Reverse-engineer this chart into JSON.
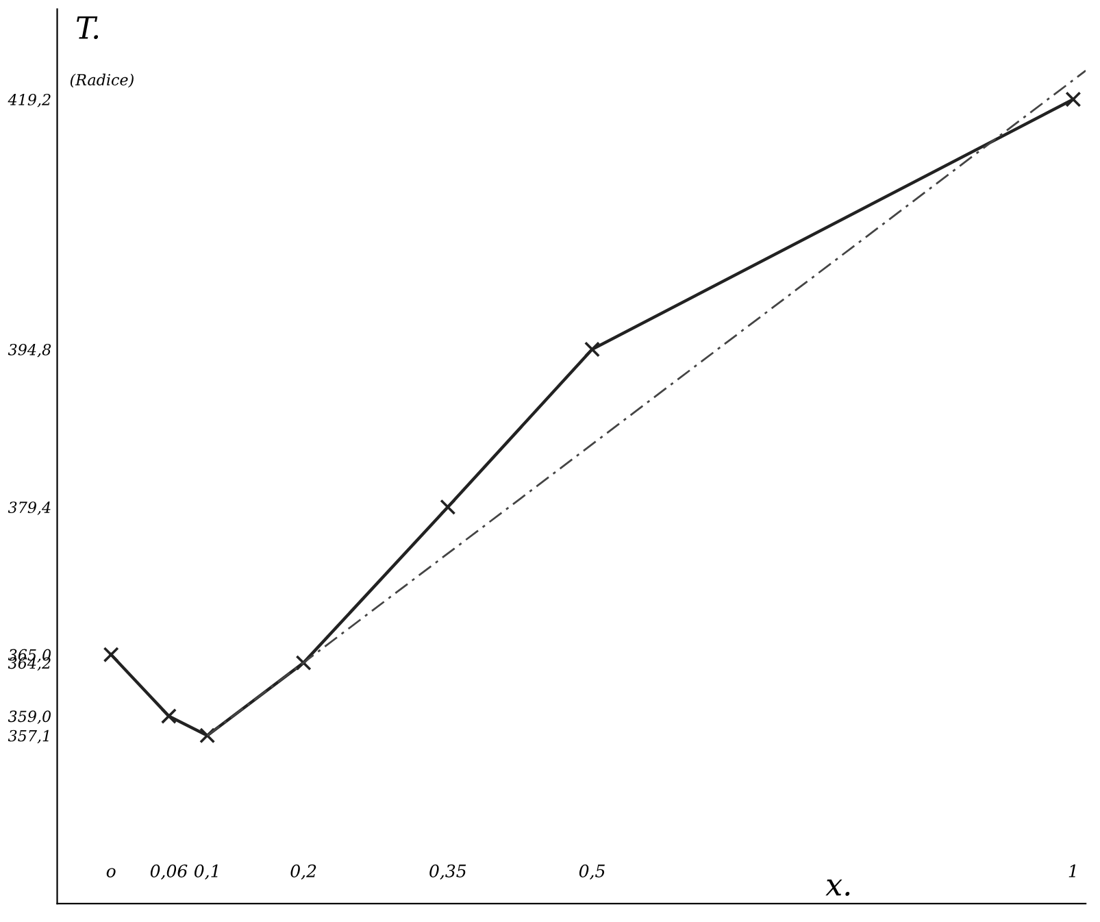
{
  "chart_data": {
    "type": "line",
    "xlabel": "x.",
    "ylabel": "T.",
    "annotations": [
      "(Radice)"
    ],
    "x": [
      0,
      0.06,
      0.1,
      0.2,
      0.35,
      0.5,
      1
    ],
    "series": [
      {
        "color": "#222222",
        "values": [
          365.0,
          359.0,
          357.1,
          364.2,
          379.4,
          394.8,
          419.2
        ],
        "marker": "cross",
        "line_style": "solid"
      },
      {
        "type": "line",
        "color": "#444444",
        "x": [
          0.1,
          1.013
        ],
        "values": [
          357.1,
          422
        ],
        "marker": "none",
        "line_style": "dashed"
      }
    ],
    "xlim": [
      -0.056,
      1.013
    ],
    "ylim": [
      340.7,
      428
    ],
    "xticks": [
      {
        "value": 0,
        "label": "o"
      },
      {
        "value": 0.06,
        "label": "0,06"
      },
      {
        "value": 0.1,
        "label": "0,1"
      },
      {
        "value": 0.2,
        "label": "0,2"
      },
      {
        "value": 0.35,
        "label": "0,35"
      },
      {
        "value": 0.5,
        "label": "0,5"
      },
      {
        "value": 1,
        "label": "1"
      }
    ],
    "yticks": [
      {
        "value": 357.1,
        "label": "357,1"
      },
      {
        "value": 359.0,
        "label": "359,0"
      },
      {
        "value": 364.2,
        "label": "364,2"
      },
      {
        "value": 365.0,
        "label": "365,0"
      },
      {
        "value": 379.4,
        "label": "379,4"
      },
      {
        "value": 394.8,
        "label": "394,8"
      },
      {
        "value": 419.2,
        "label": "419,2"
      }
    ],
    "grid": false,
    "legend": false
  }
}
